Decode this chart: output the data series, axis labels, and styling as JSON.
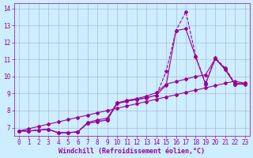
{
  "title": "",
  "xlabel": "Windchill (Refroidissement éolien,°C)",
  "ylabel": "",
  "bg_color": "#cceeff",
  "line_color": "#990099",
  "xlim": [
    -0.5,
    23.5
  ],
  "ylim": [
    6.5,
    14.3
  ],
  "xticks": [
    0,
    1,
    2,
    3,
    4,
    5,
    6,
    7,
    8,
    9,
    10,
    11,
    12,
    13,
    14,
    15,
    16,
    17,
    18,
    19,
    20,
    21,
    22,
    23
  ],
  "yticks": [
    7,
    8,
    9,
    10,
    11,
    12,
    13,
    14
  ],
  "series": [
    {
      "x": [
        0,
        1,
        2,
        3,
        4,
        5,
        6,
        7,
        8,
        9,
        10,
        11,
        12,
        13,
        14,
        15,
        16,
        17,
        18,
        19,
        20,
        21,
        22,
        23
      ],
      "y": [
        6.8,
        6.8,
        6.85,
        6.9,
        6.7,
        6.7,
        6.75,
        7.25,
        7.35,
        7.45,
        8.45,
        8.55,
        8.65,
        8.75,
        8.9,
        10.3,
        12.7,
        13.8,
        11.2,
        9.6,
        11.1,
        10.5,
        9.6,
        9.6
      ],
      "style": "--",
      "marker": "D",
      "markersize": 2.0,
      "linewidth": 0.8
    },
    {
      "comment": "solid line 1 - peaks at x=16-17 ~12.7-12.8",
      "x": [
        0,
        1,
        2,
        3,
        4,
        5,
        6,
        7,
        8,
        9,
        10,
        11,
        12,
        13,
        14,
        15,
        16,
        17,
        18,
        19,
        20,
        21,
        22,
        23
      ],
      "y": [
        6.8,
        6.8,
        6.85,
        6.9,
        6.7,
        6.7,
        6.75,
        7.25,
        7.35,
        7.45,
        8.4,
        8.55,
        8.65,
        8.75,
        8.9,
        9.5,
        12.7,
        12.8,
        11.15,
        9.55,
        11.05,
        10.45,
        9.55,
        9.55
      ],
      "style": "-",
      "marker": "D",
      "markersize": 2.0,
      "linewidth": 0.8
    },
    {
      "x": [
        0,
        1,
        2,
        3,
        4,
        5,
        6,
        7,
        8,
        9,
        10,
        11,
        12,
        13,
        14,
        15,
        16,
        17,
        18,
        19,
        20,
        21,
        22,
        23
      ],
      "y": [
        6.8,
        6.8,
        6.85,
        6.9,
        6.7,
        6.7,
        6.75,
        7.3,
        7.45,
        7.55,
        8.45,
        8.6,
        8.7,
        8.85,
        9.05,
        9.55,
        9.7,
        9.85,
        10.0,
        10.1,
        11.05,
        10.4,
        9.55,
        9.6
      ],
      "style": "-",
      "marker": "D",
      "markersize": 2.0,
      "linewidth": 0.8
    },
    {
      "x": [
        0,
        1,
        2,
        3,
        4,
        5,
        6,
        7,
        8,
        9,
        10,
        11,
        12,
        13,
        14,
        15,
        16,
        17,
        18,
        19,
        20,
        21,
        22,
        23
      ],
      "y": [
        6.8,
        6.93,
        7.07,
        7.2,
        7.33,
        7.47,
        7.6,
        7.73,
        7.87,
        8.0,
        8.13,
        8.27,
        8.4,
        8.53,
        8.67,
        8.8,
        8.93,
        9.07,
        9.2,
        9.33,
        9.47,
        9.6,
        9.73,
        9.6
      ],
      "style": "-",
      "marker": "D",
      "markersize": 2.0,
      "linewidth": 0.8
    }
  ],
  "grid_color": "#aaaacc",
  "tick_fontsize": 5.5,
  "xlabel_fontsize": 6,
  "font_family": "monospace"
}
